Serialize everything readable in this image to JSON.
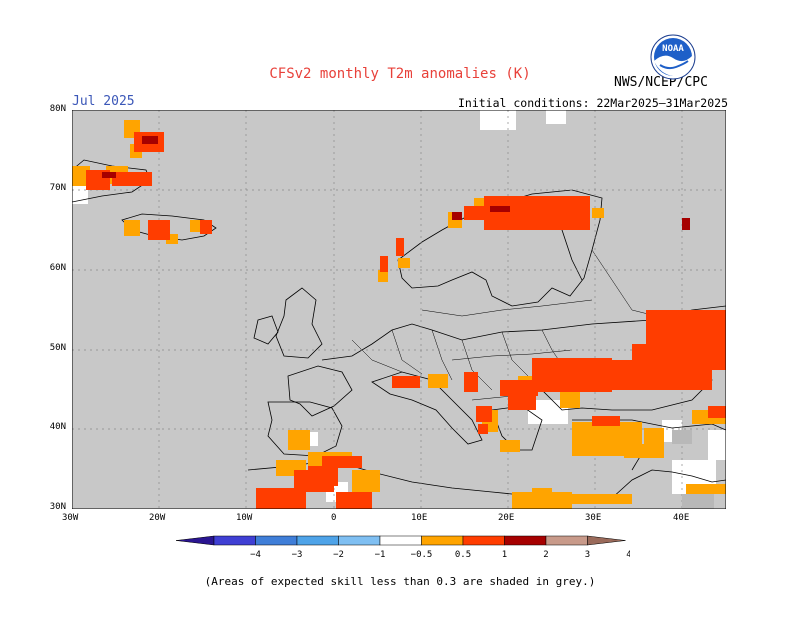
{
  "title": "CFSv2 monthly T2m anomalies (K)",
  "month": "Jul 2025",
  "initial_conditions": "Initial conditions: 22Mar2025–31Mar2025",
  "agency": "NWS/NCEP/CPC",
  "logo_text": "NOAA",
  "footnote": "(Areas of expected skill less than 0.3 are shaded in grey.)",
  "map": {
    "lon_range": [
      -30,
      45
    ],
    "lat_range": [
      30,
      80
    ],
    "lat_labels": [
      "80N",
      "70N",
      "60N",
      "50N",
      "40N",
      "30N"
    ],
    "lon_labels": [
      "30W",
      "20W",
      "10W",
      "0",
      "10E",
      "20E",
      "30E",
      "40E"
    ],
    "background_grey": "#c8c8c8"
  },
  "colorbar": {
    "labels": [
      "−4",
      "−3",
      "−2",
      "−1",
      "−0.5",
      "0.5",
      "1",
      "2",
      "3",
      "4"
    ],
    "colors": [
      "#2a1591",
      "#3f3fd4",
      "#3f7ed8",
      "#4ea3e8",
      "#7fbff2",
      "#ffffff",
      "#ffa400",
      "#ff3d00",
      "#a60000",
      "#c89a8a",
      "#9a6a5a"
    ]
  }
}
